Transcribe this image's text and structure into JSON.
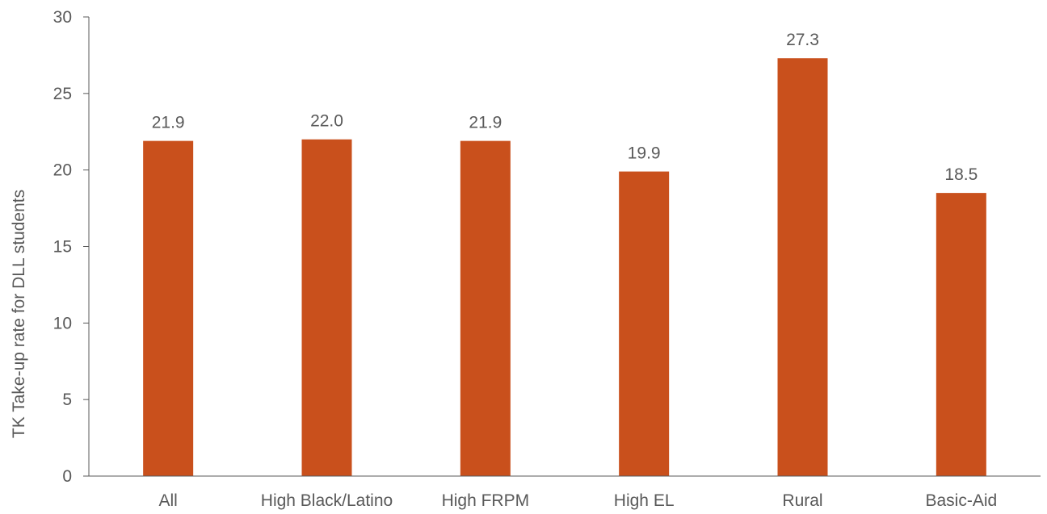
{
  "chart_data": {
    "type": "bar",
    "title": "",
    "xlabel": "",
    "ylabel": "TK Take-up rate for DLL students",
    "categories": [
      "All",
      "High Black/Latino",
      "High FRPM",
      "High EL",
      "Rural",
      "Basic-Aid"
    ],
    "values": [
      21.9,
      22.0,
      21.9,
      19.9,
      27.3,
      18.5
    ],
    "value_labels": [
      "21.9",
      "22.0",
      "21.9",
      "19.9",
      "27.3",
      "18.5"
    ],
    "ylim": [
      0,
      30
    ],
    "yticks": [
      0,
      5,
      10,
      15,
      20,
      25,
      30
    ],
    "grid": false,
    "legend": "none",
    "bar_color": "#C9501C",
    "axis_color": "#595959"
  }
}
